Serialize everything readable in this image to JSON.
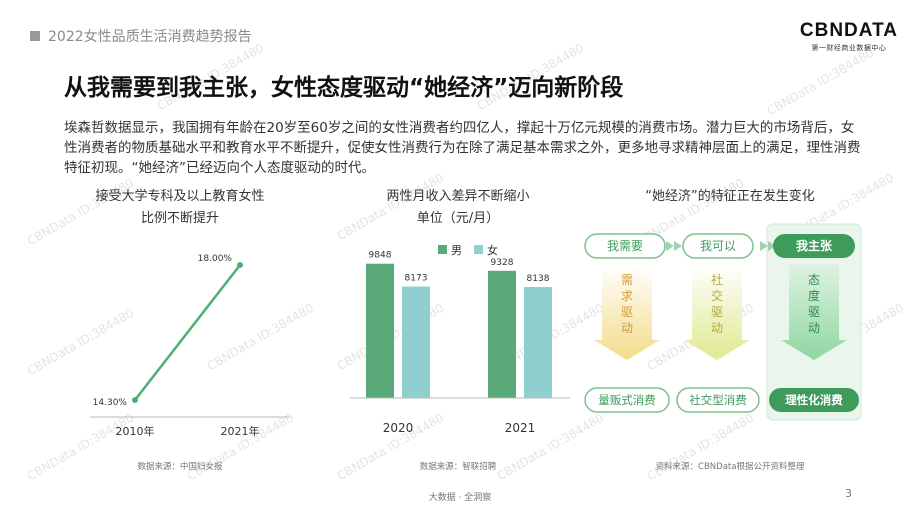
{
  "header": {
    "report_title": "2022女性品质生活消费趋势报告"
  },
  "logo": {
    "brand": "CBNDATA",
    "tagline": "第一财经商业数据中心"
  },
  "slide": {
    "title": "从我需要到我主张，女性态度驱动“她经济”迈向新阶段",
    "paragraph": "埃森哲数据显示，我国拥有年龄在20岁至60岁之间的女性消费者约四亿人，撑起十万亿元规模的消费市场。潜力巨大的市场背后，女性消费者的物质基础水平和教育水平不断提升，促使女性消费行为在除了满足基本需求之外，更多地寻求精神层面上的满足，理性消费特征初现。“她经济”已经迈向个人态度驱动的时代。"
  },
  "panel1": {
    "title_line1": "接受大学专科及以上教育女性",
    "title_line2": "比例不断提升",
    "source": "数据来源：中国妇女报"
  },
  "panel2": {
    "title_line1": "两性月收入差异不断缩小",
    "title_line2": "单位（元/月）",
    "source": "数据来源：智联招聘"
  },
  "panel3": {
    "title": "“她经济”的特征正在发生变化",
    "stages": [
      {
        "top": "我需要",
        "driver": "需求驱动",
        "bottom": "量贩式消费"
      },
      {
        "top": "我可以",
        "driver": "社交驱动",
        "bottom": "社交型消费"
      },
      {
        "top": "我主张",
        "driver": "态度驱动",
        "bottom": "理性化消费"
      }
    ],
    "source": "资料来源：CBNData根据公开资料整理"
  },
  "chart_data": [
    {
      "type": "line",
      "title": "接受大学专科及以上教育女性比例不断提升",
      "categories": [
        "2010年",
        "2021年"
      ],
      "series": [
        {
          "values": [
            14.3,
            18.0
          ]
        }
      ],
      "data_labels": [
        "14.30%",
        "18.00%"
      ],
      "grid": false,
      "color": "#4caf73"
    },
    {
      "type": "bar",
      "title": "两性月收入差异不断缩小",
      "subtitle": "单位（元/月）",
      "categories": [
        "2020",
        "2021"
      ],
      "series": [
        {
          "name": "男",
          "values": [
            9848,
            9328
          ],
          "color": "#5aa978"
        },
        {
          "name": "女",
          "values": [
            8173,
            8138
          ],
          "color": "#8fcfd0"
        }
      ],
      "legend": "top",
      "grid": false
    }
  ],
  "footer": {
    "text": "大数据 · 全洞察",
    "page_number": "3"
  },
  "watermark": {
    "text": "CBNData ID:384480"
  }
}
